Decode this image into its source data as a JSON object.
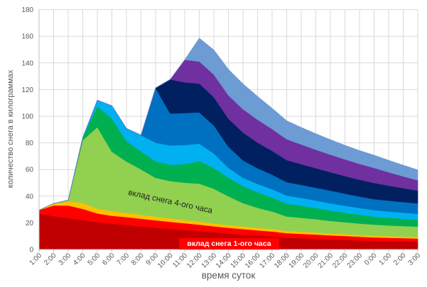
{
  "chart_data": {
    "type": "area",
    "stacked": true,
    "grid": true,
    "legend": "none",
    "xlabel": "время суток",
    "ylabel": "количество снега в килограммах",
    "ylim": [
      0,
      180
    ],
    "ytick_step": 20,
    "yticks": [
      0,
      20,
      40,
      60,
      80,
      100,
      120,
      140,
      160,
      180
    ],
    "categories": [
      "1:00",
      "2:00",
      "3:00",
      "4:00",
      "5:00",
      "6:00",
      "7:00",
      "8:00",
      "9:00",
      "10:00",
      "11:00",
      "12:00",
      "13:00",
      "14:00",
      "15:00",
      "16:00",
      "17:00",
      "18:00",
      "19:00",
      "20:00",
      "21:00",
      "22:00",
      "23:00",
      "0:00",
      "1:00",
      "2:00",
      "3:00"
    ],
    "series": [
      {
        "name": "series-1-dark-red",
        "color": "#C00000",
        "values": [
          27,
          25,
          23.5,
          22,
          20.5,
          19.3,
          18.3,
          17.3,
          16.3,
          15.4,
          14.6,
          13.8,
          12.9,
          12,
          11.2,
          10.5,
          9.8,
          8.8,
          8.4,
          8,
          7.6,
          7.2,
          6.8,
          6.4,
          6.2,
          6,
          5.8
        ]
      },
      {
        "name": "series-2-red",
        "color": "#FF0000",
        "values": [
          2.5,
          8,
          9.5,
          8.5,
          6.5,
          6,
          6,
          5.8,
          5.6,
          5.4,
          5.1,
          4.8,
          4.5,
          4.3,
          4.1,
          3.9,
          3.7,
          3.5,
          3.3,
          3.2,
          3,
          2.9,
          2.8,
          2.7,
          2.6,
          2.5,
          2.4
        ]
      },
      {
        "name": "series-3-orange",
        "color": "#FFC000",
        "values": [
          0,
          1.5,
          3,
          4.5,
          3.8,
          3.5,
          3.2,
          3,
          2.8,
          2.6,
          2.4,
          2.3,
          2.2,
          2.1,
          2,
          1.9,
          1.8,
          1.7,
          1.6,
          1.5,
          1.45,
          1.4,
          1.35,
          1.3,
          1.25,
          1.2,
          1.15
        ]
      },
      {
        "name": "series-4-light-green",
        "color": "#92D050",
        "values": [
          0,
          0,
          1,
          47,
          61,
          44.5,
          38.5,
          34,
          29,
          28,
          28,
          28.5,
          26,
          21.5,
          17.5,
          15,
          13.2,
          10.8,
          10.5,
          10,
          9.4,
          8.9,
          8.5,
          8.2,
          8,
          7.9,
          7.8
        ]
      },
      {
        "name": "series-5-green",
        "color": "#00B050",
        "values": [
          0,
          0,
          0,
          2,
          15.7,
          25,
          15.4,
          13.5,
          12.5,
          12.2,
          14,
          17,
          15.5,
          14,
          12.7,
          11.6,
          10.5,
          9.6,
          9.1,
          8.4,
          7.8,
          7.3,
          6.7,
          6.1,
          5.8,
          5.5,
          5.3
        ]
      },
      {
        "name": "series-6-cyan",
        "color": "#00B0F0",
        "values": [
          0,
          0,
          0,
          0,
          4.5,
          9.5,
          9.4,
          12.2,
          14,
          14.5,
          14.3,
          13,
          11,
          7.5,
          6.4,
          6.3,
          6.2,
          6.1,
          5.8,
          5.6,
          5.3,
          5.1,
          5,
          4.9,
          4.7,
          4.5,
          4.3
        ]
      },
      {
        "name": "series-7-blue",
        "color": "#0070C0",
        "values": [
          0,
          0,
          0,
          0,
          0,
          0,
          0,
          0,
          41,
          24,
          24,
          23.5,
          21,
          15.8,
          13,
          11.8,
          11,
          10,
          9.8,
          9.7,
          9.6,
          9.1,
          8.6,
          8.2,
          8.1,
          8,
          7.8
        ]
      },
      {
        "name": "series-8-navy",
        "color": "#002060",
        "values": [
          0,
          0,
          0,
          0,
          0,
          0,
          0,
          0,
          0,
          25.5,
          23,
          21.7,
          21.2,
          21,
          20.9,
          19.2,
          17.8,
          16.5,
          15.5,
          14.6,
          13.9,
          13.2,
          12.6,
          12.1,
          11.2,
          10.4,
          9.6
        ]
      },
      {
        "name": "series-9-purple",
        "color": "#7030A0",
        "values": [
          0,
          0,
          0,
          0,
          0,
          0,
          0,
          0,
          0,
          0,
          17,
          16.5,
          17,
          17.5,
          17.5,
          17.2,
          16.4,
          15.7,
          14.8,
          13.9,
          13.1,
          12.5,
          11.9,
          11.3,
          10.1,
          8.9,
          7.8
        ]
      },
      {
        "name": "series-10-steel-blue",
        "color": "#6D9BD4",
        "values": [
          0,
          0,
          0,
          0,
          0,
          0,
          0,
          0,
          0,
          0,
          0,
          17.5,
          18.5,
          19.5,
          19,
          17.5,
          15.5,
          13.9,
          12.8,
          12,
          11.3,
          10.6,
          10,
          9.6,
          9,
          8.4,
          7.8
        ]
      }
    ],
    "annotations": [
      {
        "id": "annotation-hour4",
        "text": "вклад снега 4-ого часа",
        "style": "plain",
        "text_color": "#1F1F1F"
      },
      {
        "id": "annotation-hour1",
        "text": "вклад снега 1-ого часа",
        "style": "red-box",
        "box_color": "#FF0000",
        "text_color": "#FFFFFF"
      }
    ],
    "colors": {
      "grid": "#D9D9D9",
      "axis": "#BFBFBF",
      "tick_text": "#595959",
      "axis_title_text": "#595959",
      "background": "#FFFFFF"
    }
  }
}
